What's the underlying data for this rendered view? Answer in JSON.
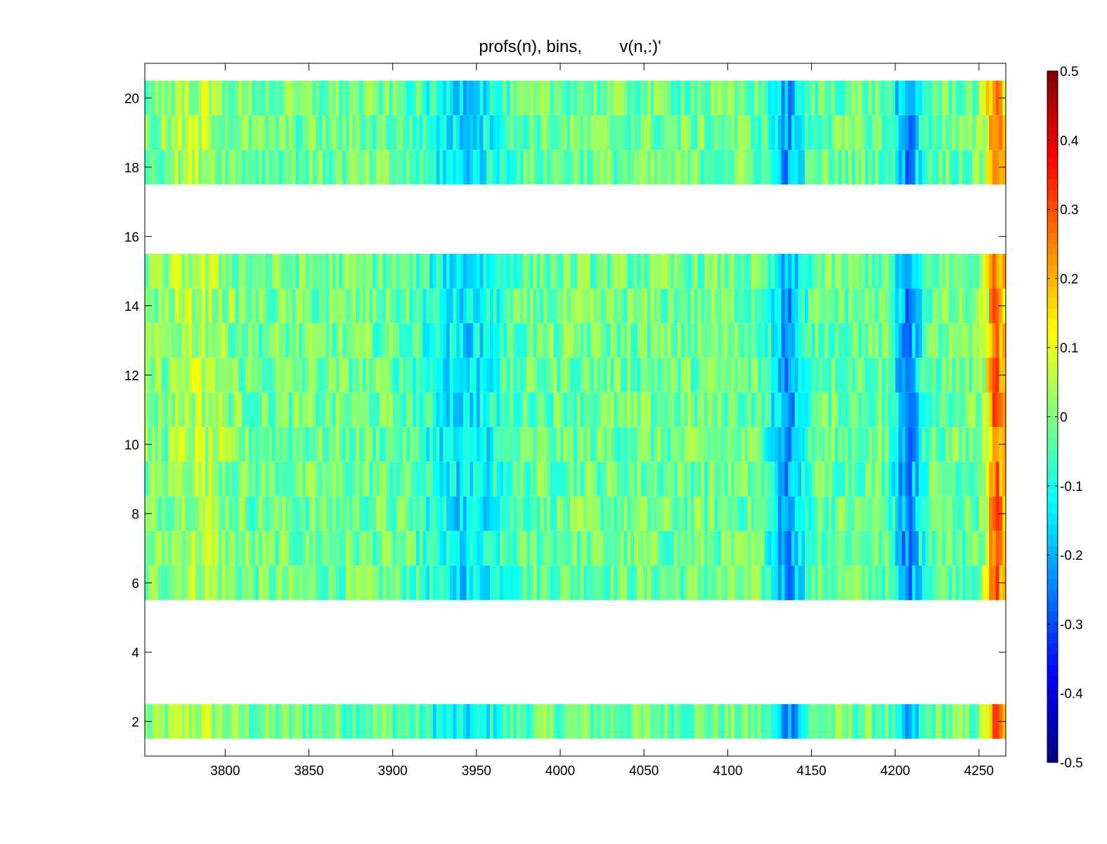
{
  "chart_data": {
    "type": "heatmap",
    "title": "profs(n), bins,        v(n,:)'",
    "xlabel": "",
    "ylabel": "",
    "xlim": [
      3752,
      4266
    ],
    "ylim": [
      1,
      21
    ],
    "x_ticks": [
      3800,
      3850,
      3900,
      3950,
      4000,
      4050,
      4100,
      4150,
      4200,
      4250
    ],
    "y_ticks": [
      2,
      4,
      6,
      8,
      10,
      12,
      14,
      16,
      18,
      20
    ],
    "rows": [
      2,
      6,
      7,
      8,
      9,
      10,
      11,
      12,
      13,
      14,
      15,
      18,
      19,
      20
    ],
    "missing_rows": [
      1,
      3,
      4,
      5,
      16,
      17
    ],
    "colormap": "jet",
    "clim": [
      -0.5,
      0.5
    ],
    "colorbar_ticks": [
      "0.5",
      "0.4",
      "0.3",
      "0.2",
      "0.1",
      "0",
      "-0.1",
      "-0.2",
      "-0.3",
      "-0.4",
      "-0.5"
    ],
    "features": [
      {
        "x_range": [
          4127,
          4145
        ],
        "value": -0.2
      },
      {
        "x_range": [
          4200,
          4215
        ],
        "value": -0.22
      },
      {
        "x_range": [
          3920,
          3965
        ],
        "value": -0.13
      },
      {
        "x_range": [
          3765,
          3800
        ],
        "value": 0.07
      },
      {
        "x_range": [
          4255,
          4266
        ],
        "value": 0.3
      }
    ]
  }
}
